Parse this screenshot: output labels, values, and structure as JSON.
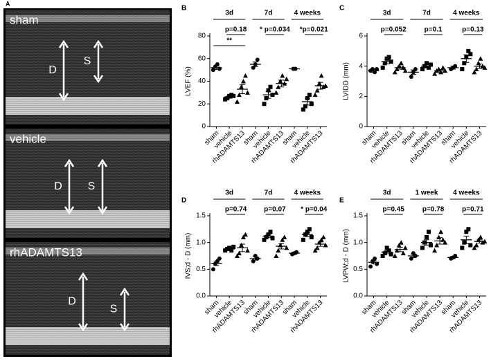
{
  "figure_panel": "A",
  "echo_panels": [
    {
      "label": "sham",
      "arrows": [
        "D",
        "S"
      ]
    },
    {
      "label": "vehicle",
      "arrows": [
        "D",
        "S"
      ]
    },
    {
      "label": "rhADAMTS13",
      "arrows": [
        "D",
        "S"
      ]
    }
  ],
  "chart_data": [
    {
      "type": "dot",
      "panel": "B",
      "ylabel": "LVEF (%)",
      "ylim": [
        0,
        80
      ],
      "yticks": [
        0,
        20,
        40,
        60,
        80
      ],
      "markers": [
        "circle",
        "square",
        "triangle"
      ],
      "color": "#000000",
      "groups": [
        {
          "name": "3d",
          "categories": [
            "sham",
            "vehicle",
            "rhADAMTS13"
          ],
          "points": [
            [
              50,
              53,
              55,
              51
            ],
            [
              24,
              25,
              27,
              28,
              27
            ],
            [
              22,
              28,
              35,
              40,
              45,
              30
            ]
          ],
          "means": [
            52,
            26,
            33
          ],
          "sems": [
            1.5,
            1,
            4
          ],
          "annotations": [
            {
              "label": "p=0.18",
              "between": [
                "vehicle",
                "rhADAMTS13"
              ]
            },
            {
              "label": "**",
              "between": [
                "sham",
                "rhADAMTS13"
              ]
            }
          ]
        },
        {
          "name": "7d",
          "categories": [
            "sham",
            "vehicle",
            "rhADAMTS13"
          ],
          "points": [
            [
              52,
              55,
              59
            ],
            [
              20,
              25,
              32,
              35,
              28
            ],
            [
              30,
              35,
              40,
              45,
              38,
              42
            ]
          ],
          "means": [
            55,
            28,
            38
          ],
          "sems": [
            2,
            3,
            3
          ],
          "annotations": [
            {
              "label": "* p=0.034",
              "between": [
                "vehicle",
                "rhADAMTS13"
              ]
            }
          ]
        },
        {
          "name": "4 weeks",
          "categories": [
            "sham",
            "vehicle",
            "rhADAMTS13"
          ],
          "points": [
            [
              51,
              51
            ],
            [
              15,
              18,
              25,
              28,
              20
            ],
            [
              28,
              32,
              38,
              45,
              35,
              36
            ]
          ],
          "means": [
            51,
            22,
            36
          ],
          "sems": [
            0.5,
            3,
            3
          ],
          "annotations": [
            {
              "label": "*p=0.021",
              "between": [
                "vehicle",
                "rhADAMTS13"
              ]
            }
          ]
        }
      ]
    },
    {
      "type": "dot",
      "panel": "C",
      "ylabel": "LVIDD (mm)",
      "ylim": [
        0,
        6
      ],
      "yticks": [
        0,
        2,
        4,
        6
      ],
      "markers": [
        "circle",
        "square",
        "triangle"
      ],
      "color": "#000000",
      "groups": [
        {
          "name": "3d",
          "categories": [
            "sham",
            "vehicle",
            "rhADAMTS13"
          ],
          "points": [
            [
              3.7,
              3.8,
              3.6,
              3.8
            ],
            [
              3.9,
              4.2,
              4.5,
              4.6,
              4.3
            ],
            [
              3.6,
              3.8,
              4.0,
              4.2,
              3.9,
              3.7
            ]
          ],
          "means": [
            3.7,
            4.3,
            3.9
          ],
          "sems": [
            0.1,
            0.15,
            0.1
          ],
          "annotations": [
            {
              "label": "p=0.052",
              "between": [
                "vehicle",
                "rhADAMTS13"
              ]
            }
          ]
        },
        {
          "name": "7d",
          "categories": [
            "sham",
            "vehicle",
            "rhADAMTS13"
          ],
          "points": [
            [
              3.3,
              3.6,
              3.8
            ],
            [
              3.8,
              4.0,
              4.2,
              3.9,
              4.1
            ],
            [
              3.5,
              3.7,
              3.8,
              3.6,
              3.9,
              3.7
            ]
          ],
          "means": [
            3.6,
            4.0,
            3.7
          ],
          "sems": [
            0.15,
            0.1,
            0.08
          ],
          "annotations": [
            {
              "label": "p=0.1",
              "between": [
                "vehicle",
                "rhADAMTS13"
              ]
            }
          ]
        },
        {
          "name": "4 weeks",
          "categories": [
            "sham",
            "vehicle",
            "rhADAMTS13"
          ],
          "points": [
            [
              3.8,
              3.9,
              4.0
            ],
            [
              3.8,
              4.2,
              4.6,
              5.0,
              4.8
            ],
            [
              3.6,
              3.8,
              4.2,
              4.5,
              4.0,
              3.9
            ]
          ],
          "means": [
            3.9,
            4.5,
            4.0
          ],
          "sems": [
            0.1,
            0.25,
            0.15
          ],
          "annotations": [
            {
              "label": "p=0.13",
              "between": [
                "vehicle",
                "rhADAMTS13"
              ]
            }
          ]
        }
      ]
    },
    {
      "type": "dot",
      "panel": "D",
      "ylabel": "IVS;d - D (mm)",
      "ylim": [
        0,
        1.5
      ],
      "yticks": [
        {
          "value": 0,
          "label": "0.0"
        },
        0.5,
        {
          "value": 1,
          "label": "1.0"
        },
        1.5
      ],
      "markers": [
        "circle",
        "square",
        "triangle"
      ],
      "color": "#000000",
      "groups": [
        {
          "name": "3d",
          "categories": [
            "sham",
            "vehicle",
            "rhADAMTS13"
          ],
          "points": [
            [
              0.5,
              0.6,
              0.65,
              0.7
            ],
            [
              0.85,
              0.88,
              0.9,
              0.85,
              0.92
            ],
            [
              0.75,
              0.8,
              0.95,
              1.1,
              1.15,
              0.85
            ]
          ],
          "means": [
            0.61,
            0.88,
            0.9
          ],
          "sems": [
            0.04,
            0.02,
            0.07
          ],
          "annotations": [
            {
              "label": "p=0.74",
              "between": [
                "vehicle",
                "rhADAMTS13"
              ]
            }
          ]
        },
        {
          "name": "7d",
          "categories": [
            "sham",
            "vehicle",
            "rhADAMTS13"
          ],
          "points": [
            [
              0.65,
              0.75,
              0.7
            ],
            [
              1.05,
              1.1,
              1.15,
              1.2,
              1.08
            ],
            [
              0.75,
              0.85,
              0.95,
              1.05,
              1.1,
              0.9
            ]
          ],
          "means": [
            0.7,
            1.12,
            0.93
          ],
          "sems": [
            0.03,
            0.03,
            0.05
          ],
          "annotations": [
            {
              "label": "p=0.07",
              "between": [
                "vehicle",
                "rhADAMTS13"
              ]
            }
          ]
        },
        {
          "name": "4 weeks",
          "categories": [
            "sham",
            "vehicle",
            "rhADAMTS13"
          ],
          "points": [
            [
              0.78,
              0.8,
              0.82
            ],
            [
              1.05,
              1.15,
              1.2,
              1.25,
              1.1
            ],
            [
              0.85,
              0.9,
              1.0,
              1.05,
              1.1,
              0.95
            ]
          ],
          "means": [
            0.8,
            1.15,
            0.97
          ],
          "sems": [
            0.02,
            0.04,
            0.04
          ],
          "annotations": [
            {
              "label": "* p=0.04",
              "between": [
                "vehicle",
                "rhADAMTS13"
              ]
            }
          ]
        }
      ]
    },
    {
      "type": "dot",
      "panel": "E",
      "ylabel": "LVPW;d - D (mm)",
      "ylim": [
        0,
        1.5
      ],
      "yticks": [
        {
          "value": 0,
          "label": "0.0"
        },
        0.5,
        {
          "value": 1,
          "label": "1.0"
        },
        1.5
      ],
      "markers": [
        "circle",
        "square",
        "triangle"
      ],
      "color": "#000000",
      "groups": [
        {
          "name": "3d",
          "categories": [
            "sham",
            "vehicle",
            "rhADAMTS13"
          ],
          "points": [
            [
              0.55,
              0.65,
              0.7,
              0.6
            ],
            [
              0.75,
              0.8,
              0.9,
              0.85,
              0.78
            ],
            [
              0.75,
              0.85,
              0.95,
              1.0,
              0.8,
              0.9
            ]
          ],
          "means": [
            0.63,
            0.82,
            0.87
          ],
          "sems": [
            0.03,
            0.03,
            0.04
          ],
          "annotations": [
            {
              "label": "p=0.45",
              "between": [
                "vehicle",
                "rhADAMTS13"
              ]
            }
          ]
        },
        {
          "name": "1 week",
          "categories": [
            "sham",
            "vehicle",
            "rhADAMTS13"
          ],
          "points": [
            [
              0.7,
              0.8,
              0.75
            ],
            [
              0.9,
              1.0,
              1.1,
              1.2,
              0.95
            ],
            [
              0.85,
              0.95,
              1.1,
              1.2,
              1.05,
              1.0
            ]
          ],
          "means": [
            0.75,
            1.0,
            1.03
          ],
          "sems": [
            0.03,
            0.05,
            0.06
          ],
          "annotations": [
            {
              "label": "p=0.78",
              "between": [
                "vehicle",
                "rhADAMTS13"
              ]
            }
          ]
        },
        {
          "name": "4 weeks",
          "categories": [
            "sham",
            "vehicle",
            "rhADAMTS13"
          ],
          "points": [
            [
              0.7,
              0.72,
              0.75
            ],
            [
              0.9,
              1.0,
              1.2,
              1.25,
              0.95
            ],
            [
              0.9,
              0.95,
              1.05,
              1.1,
              1.0,
              1.02
            ]
          ],
          "means": [
            0.72,
            1.05,
            1.02
          ],
          "sems": [
            0.02,
            0.07,
            0.03
          ],
          "annotations": [
            {
              "label": "p=0.71",
              "between": [
                "vehicle",
                "rhADAMTS13"
              ]
            }
          ]
        }
      ]
    }
  ]
}
